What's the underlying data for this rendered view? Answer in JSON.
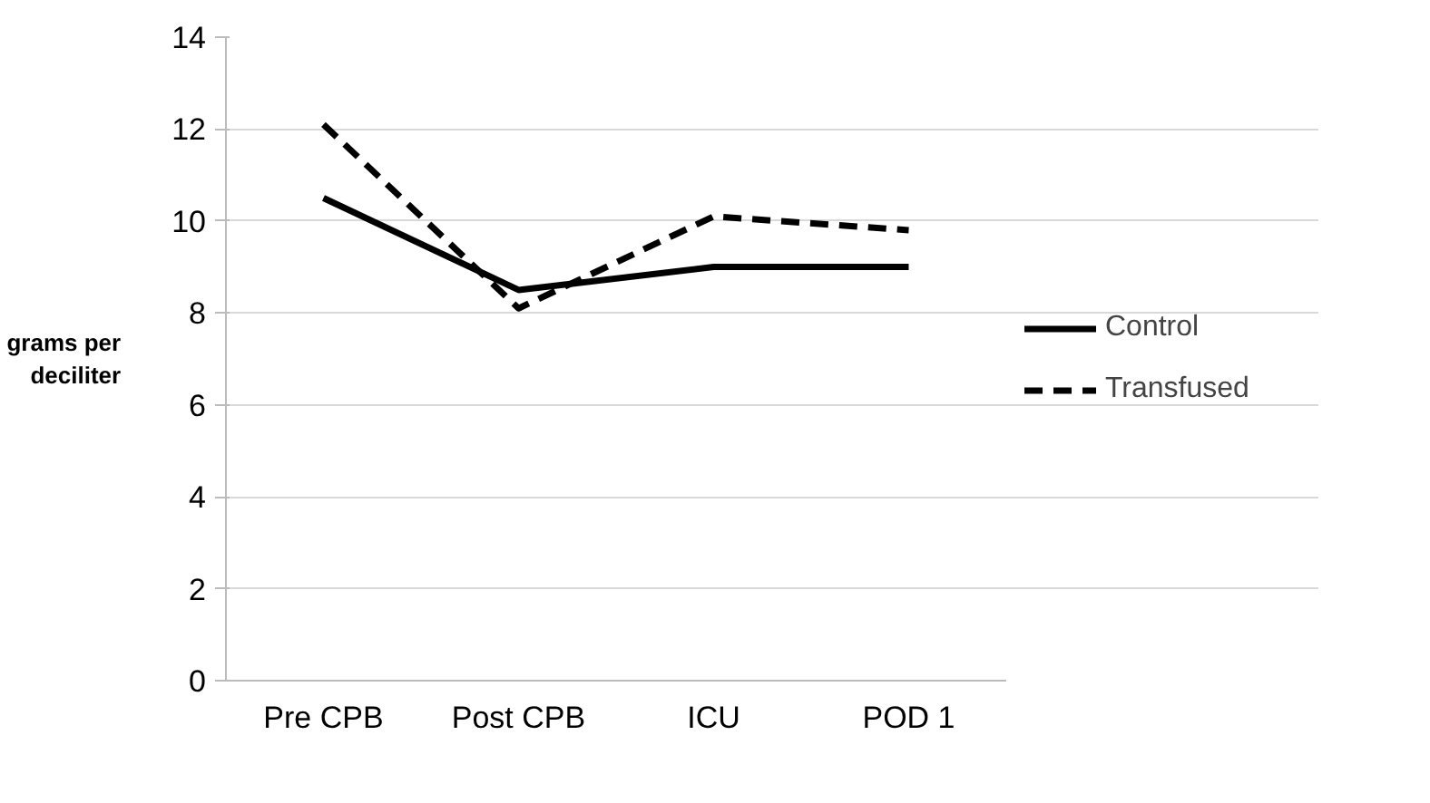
{
  "chart_data": {
    "type": "line",
    "ylabel": "grams per\ndeciliter",
    "categories": [
      "Pre CPB",
      "Post CPB",
      "ICU",
      "POD 1"
    ],
    "series": [
      {
        "name": "Control",
        "color": "#000000",
        "line_style": "solid",
        "values": [
          10.5,
          8.5,
          9.0,
          9.0
        ]
      },
      {
        "name": "Transfused",
        "color": "#000000",
        "line_style": "dashed",
        "values": [
          12.1,
          8.1,
          10.1,
          9.8
        ]
      }
    ],
    "ylim": [
      0,
      14
    ],
    "yticks": [
      0,
      2,
      4,
      6,
      8,
      10,
      12,
      14
    ],
    "grid": "y",
    "legend": "right",
    "marker": "none"
  }
}
